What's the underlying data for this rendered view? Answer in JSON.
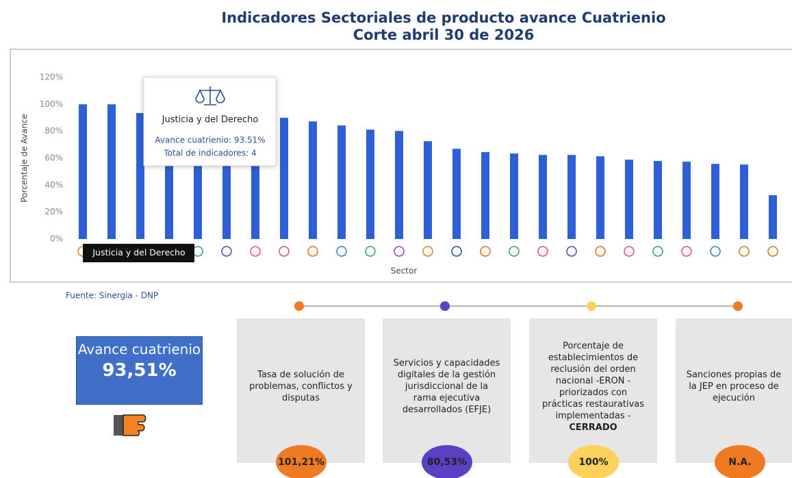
{
  "chart_data": {
    "type": "bar",
    "title": "Indicadores Sectoriales de producto avance Cuatrienio",
    "subtitle": "Corte abril 30 de 2026",
    "y_label": "Porcentaje de Avance",
    "x_label": "Sector",
    "categories": [
      null,
      null,
      "Justicia y del Derecho",
      null,
      null,
      null,
      null,
      null,
      null,
      null,
      null,
      null,
      null,
      null,
      null,
      null,
      null,
      null,
      null,
      null,
      null,
      null,
      null,
      null,
      null
    ],
    "values": [
      100,
      100,
      93.51,
      91,
      90.5,
      90,
      90,
      90,
      87.3,
      84.3,
      81.2,
      80.2,
      72.6,
      67,
      64.5,
      63.5,
      62.4,
      62.4,
      61.4,
      58.9,
      57.9,
      57.4,
      55.8,
      55.3,
      32.5
    ],
    "color": "#2f5fd6",
    "ylim": [
      0,
      120
    ],
    "yticks": [
      {
        "value": 0,
        "label": "0%"
      },
      {
        "value": 20,
        "label": "20%"
      },
      {
        "value": 40,
        "label": "40%"
      },
      {
        "value": 60,
        "label": "60%"
      },
      {
        "value": 80,
        "label": "80%"
      },
      {
        "value": 100,
        "label": "100%"
      },
      {
        "value": 120,
        "label": "120%"
      }
    ],
    "grid": false,
    "tooltip": {
      "index": 2,
      "value_text": "Avance cuatrienio: 93.51%",
      "count_text": "Total de indicadores: 4"
    }
  },
  "source": "Fuente: Sinergia - DNP",
  "summary": {
    "label": "Avance cuatrienio",
    "value": "93,51%"
  },
  "cards": [
    {
      "text": "Tasa de solución de problemas, conflictos y disputas",
      "badge": "101,21%",
      "color": "#f07a22"
    },
    {
      "text": "Servicios y capacidades digitales de la gestión jurisdiccional de la rama ejecutiva desarrollados (EFJE)",
      "badge": "80,53%",
      "color": "#5b3fc4"
    },
    {
      "text": "Porcentaje de establecimientos de reclusión del orden nacional -ERON - priorizados con prácticas restaurativas implementadas -",
      "status": "CERRADO",
      "badge": "100%",
      "color": "#fcd25a"
    },
    {
      "text": "Sanciones propias de la JEP en proceso de ejecución",
      "badge": "N.A.",
      "color": "#f07a22"
    }
  ]
}
